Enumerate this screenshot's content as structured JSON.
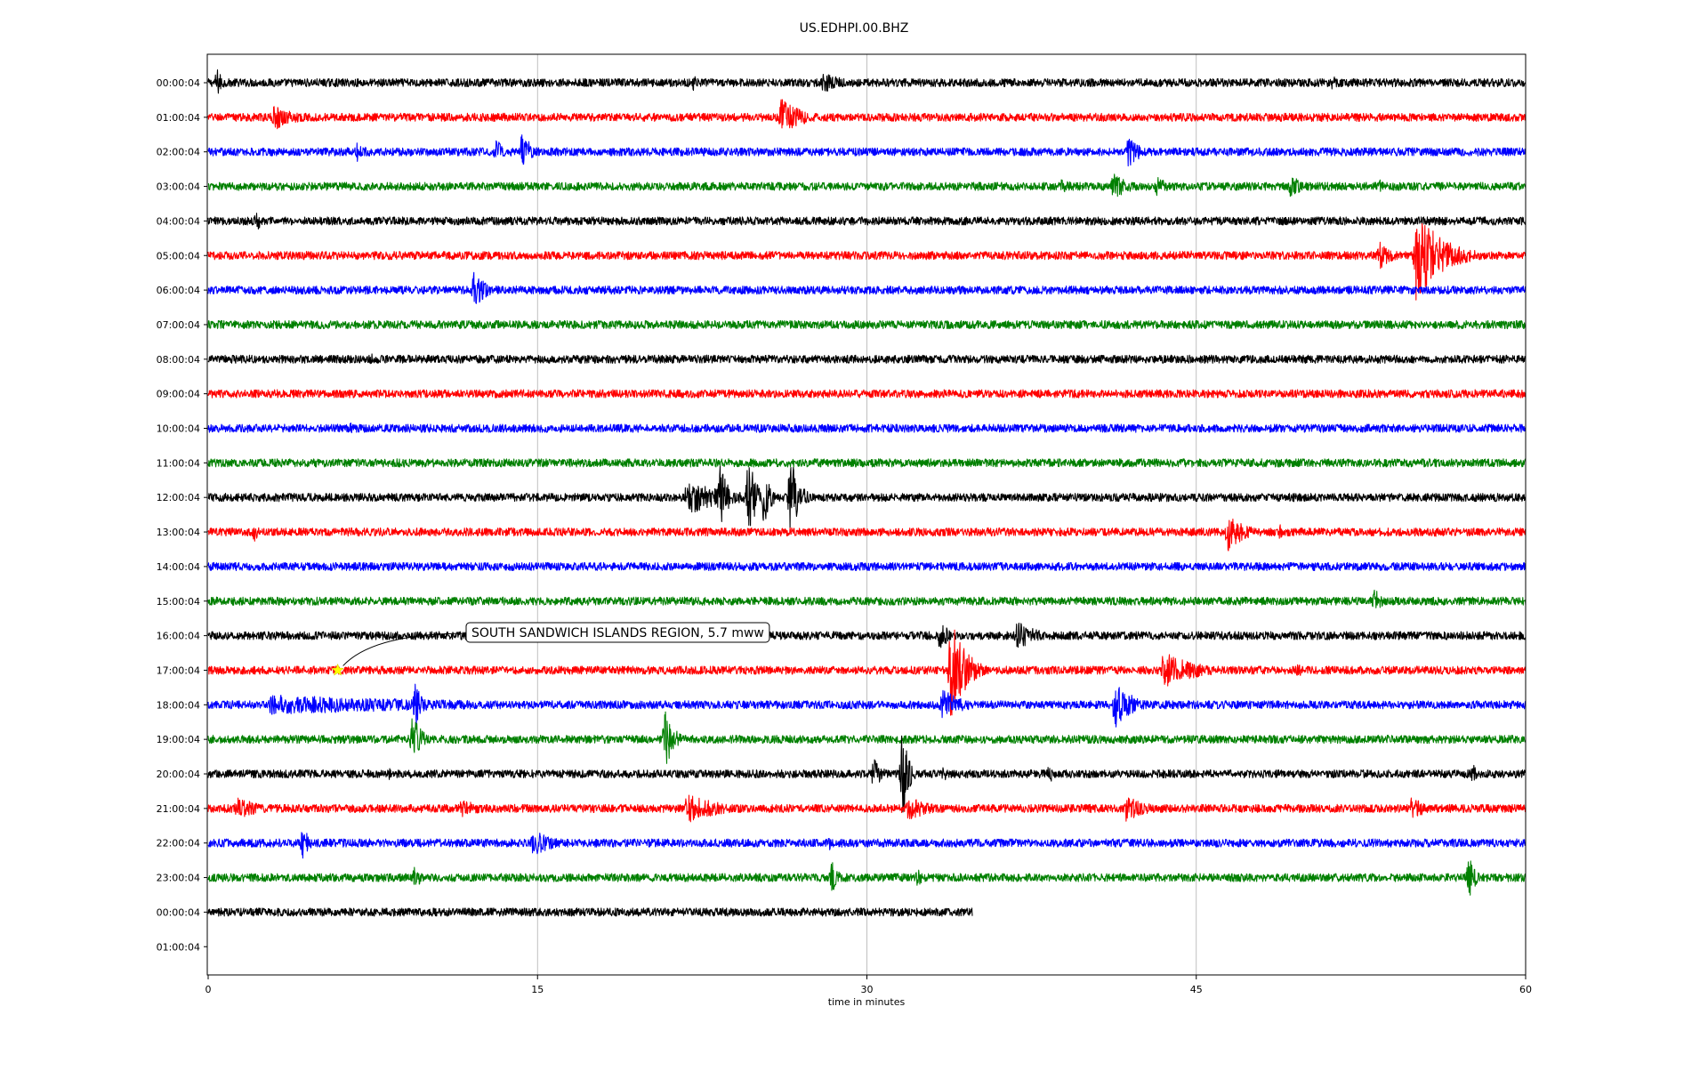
{
  "chart_data": {
    "type": "line",
    "title": "US.EDHPI.00.BHZ",
    "xlabel": "time in minutes",
    "ylabel": "",
    "xlim": [
      0,
      60
    ],
    "xticks": [
      0,
      15,
      30,
      45,
      60
    ],
    "grid": "vertical",
    "row_labels": [
      "00:00:04",
      "01:00:04",
      "02:00:04",
      "03:00:04",
      "04:00:04",
      "05:00:04",
      "06:00:04",
      "07:00:04",
      "08:00:04",
      "09:00:04",
      "10:00:04",
      "11:00:04",
      "12:00:04",
      "13:00:04",
      "14:00:04",
      "15:00:04",
      "16:00:04",
      "17:00:04",
      "18:00:04",
      "19:00:04",
      "20:00:04",
      "21:00:04",
      "22:00:04",
      "23:00:04",
      "00:00:04",
      "01:00:04"
    ],
    "colors": [
      "#000000",
      "#ff0000",
      "#0000ff",
      "#008000"
    ],
    "traces": [
      {
        "row": 0,
        "end": 60,
        "noise": 0.12,
        "events": [
          {
            "t": 0.4,
            "a": 0.45,
            "w": 0.3
          },
          {
            "t": 22.1,
            "a": 0.3,
            "w": 0.4
          },
          {
            "t": 28.0,
            "a": 0.3,
            "w": 1.2
          },
          {
            "t": 51.2,
            "a": 0.25,
            "w": 0.3
          }
        ]
      },
      {
        "row": 1,
        "end": 60,
        "noise": 0.12,
        "events": [
          {
            "t": 3.0,
            "a": 0.4,
            "w": 1.0
          },
          {
            "t": 17.6,
            "a": 0.2,
            "w": 0.3
          },
          {
            "t": 26.1,
            "a": 0.55,
            "w": 1.0
          }
        ]
      },
      {
        "row": 2,
        "end": 60,
        "noise": 0.12,
        "events": [
          {
            "t": 6.8,
            "a": 0.35,
            "w": 0.4
          },
          {
            "t": 13.1,
            "a": 0.5,
            "w": 0.3
          },
          {
            "t": 14.3,
            "a": 0.65,
            "w": 0.4
          },
          {
            "t": 41.9,
            "a": 0.55,
            "w": 0.5
          }
        ]
      },
      {
        "row": 3,
        "end": 60,
        "noise": 0.12,
        "events": [
          {
            "t": 38.8,
            "a": 0.25,
            "w": 0.8
          },
          {
            "t": 41.2,
            "a": 0.4,
            "w": 0.8
          },
          {
            "t": 43.2,
            "a": 0.3,
            "w": 0.6
          },
          {
            "t": 49.3,
            "a": 0.4,
            "w": 0.6
          },
          {
            "t": 53.3,
            "a": 0.25,
            "w": 0.3
          }
        ]
      },
      {
        "row": 4,
        "end": 60,
        "noise": 0.12,
        "events": [
          {
            "t": 2.2,
            "a": 0.35,
            "w": 0.3
          }
        ]
      },
      {
        "row": 5,
        "end": 60,
        "noise": 0.12,
        "events": [
          {
            "t": 44.7,
            "a": 0.2,
            "w": 0.3
          },
          {
            "t": 53.3,
            "a": 0.45,
            "w": 0.6
          },
          {
            "t": 55.0,
            "a": 1.4,
            "w": 1.2
          }
        ]
      },
      {
        "row": 6,
        "end": 60,
        "noise": 0.12,
        "events": [
          {
            "t": 12.1,
            "a": 0.55,
            "w": 0.6
          }
        ]
      },
      {
        "row": 7,
        "end": 60,
        "noise": 0.12,
        "events": []
      },
      {
        "row": 8,
        "end": 60,
        "noise": 0.12,
        "events": [
          {
            "t": 7.4,
            "a": 0.2,
            "w": 0.3
          }
        ]
      },
      {
        "row": 9,
        "end": 60,
        "noise": 0.12,
        "events": []
      },
      {
        "row": 10,
        "end": 60,
        "noise": 0.12,
        "events": [
          {
            "t": 6.5,
            "a": 0.25,
            "w": 0.3
          }
        ]
      },
      {
        "row": 11,
        "end": 60,
        "noise": 0.12,
        "events": []
      },
      {
        "row": 12,
        "end": 60,
        "noise": 0.12,
        "events": [
          {
            "t": 21.8,
            "a": 0.55,
            "w": 2.0
          },
          {
            "t": 23.3,
            "a": 1.3,
            "w": 0.3
          },
          {
            "t": 24.6,
            "a": 1.5,
            "w": 0.3
          },
          {
            "t": 25.3,
            "a": 0.9,
            "w": 0.3
          },
          {
            "t": 26.5,
            "a": 1.3,
            "w": 0.4
          }
        ]
      },
      {
        "row": 13,
        "end": 60,
        "noise": 0.12,
        "events": [
          {
            "t": 2.1,
            "a": 0.3,
            "w": 0.3
          },
          {
            "t": 46.4,
            "a": 0.6,
            "w": 0.8
          },
          {
            "t": 48.8,
            "a": 0.25,
            "w": 0.3
          },
          {
            "t": 55.8,
            "a": 0.2,
            "w": 0.3
          }
        ]
      },
      {
        "row": 14,
        "end": 60,
        "noise": 0.12,
        "events": []
      },
      {
        "row": 15,
        "end": 60,
        "noise": 0.12,
        "events": [
          {
            "t": 53.1,
            "a": 0.4,
            "w": 0.4
          }
        ]
      },
      {
        "row": 16,
        "end": 60,
        "noise": 0.12,
        "events": [
          {
            "t": 33.3,
            "a": 0.4,
            "w": 0.6
          },
          {
            "t": 36.8,
            "a": 0.45,
            "w": 1.0
          }
        ]
      },
      {
        "row": 17,
        "end": 60,
        "noise": 0.12,
        "events": [
          {
            "t": 33.8,
            "a": 1.6,
            "w": 0.7
          },
          {
            "t": 43.5,
            "a": 0.55,
            "w": 1.6
          },
          {
            "t": 49.6,
            "a": 0.25,
            "w": 0.3
          }
        ]
      },
      {
        "row": 18,
        "end": 60,
        "noise": 0.12,
        "events": [
          {
            "t": 2.8,
            "a": 0.3,
            "w": 11.0
          },
          {
            "t": 9.4,
            "a": 0.8,
            "w": 0.3
          },
          {
            "t": 33.4,
            "a": 0.5,
            "w": 1.0
          },
          {
            "t": 41.3,
            "a": 0.9,
            "w": 0.6
          },
          {
            "t": 42.0,
            "a": 0.35,
            "w": 0.6
          }
        ]
      },
      {
        "row": 19,
        "end": 60,
        "noise": 0.12,
        "events": [
          {
            "t": 9.3,
            "a": 0.8,
            "w": 0.4
          },
          {
            "t": 20.8,
            "a": 0.95,
            "w": 0.4
          }
        ]
      },
      {
        "row": 20,
        "end": 60,
        "noise": 0.12,
        "events": [
          {
            "t": 8.2,
            "a": 0.25,
            "w": 0.3
          },
          {
            "t": 30.3,
            "a": 0.5,
            "w": 0.4
          },
          {
            "t": 31.6,
            "a": 1.35,
            "w": 0.3
          },
          {
            "t": 33.5,
            "a": 0.3,
            "w": 0.3
          },
          {
            "t": 38.3,
            "a": 0.3,
            "w": 0.3
          },
          {
            "t": 57.6,
            "a": 0.3,
            "w": 0.3
          }
        ]
      },
      {
        "row": 21,
        "end": 60,
        "noise": 0.12,
        "events": [
          {
            "t": 1.3,
            "a": 0.35,
            "w": 1.2
          },
          {
            "t": 11.5,
            "a": 0.3,
            "w": 1.0
          },
          {
            "t": 21.8,
            "a": 0.45,
            "w": 1.6
          },
          {
            "t": 31.9,
            "a": 0.4,
            "w": 1.0
          },
          {
            "t": 41.8,
            "a": 0.4,
            "w": 1.0
          },
          {
            "t": 54.8,
            "a": 0.35,
            "w": 0.8
          }
        ]
      },
      {
        "row": 22,
        "end": 60,
        "noise": 0.12,
        "events": [
          {
            "t": 4.3,
            "a": 0.55,
            "w": 0.3
          },
          {
            "t": 14.8,
            "a": 0.4,
            "w": 1.0
          },
          {
            "t": 28.3,
            "a": 0.25,
            "w": 0.3
          }
        ]
      },
      {
        "row": 23,
        "end": 60,
        "noise": 0.12,
        "events": [
          {
            "t": 9.4,
            "a": 0.35,
            "w": 0.4
          },
          {
            "t": 28.4,
            "a": 0.5,
            "w": 0.3
          },
          {
            "t": 32.3,
            "a": 0.3,
            "w": 0.4
          },
          {
            "t": 57.4,
            "a": 0.7,
            "w": 0.3
          }
        ]
      },
      {
        "row": 24,
        "end": 34.8,
        "noise": 0.12,
        "events": []
      }
    ],
    "annotation": {
      "text": "SOUTH SANDWICH ISLANDS REGION, 5.7 mww",
      "row": 17,
      "t": 5.9,
      "marker": "star",
      "marker_color": "#ffff00"
    }
  }
}
